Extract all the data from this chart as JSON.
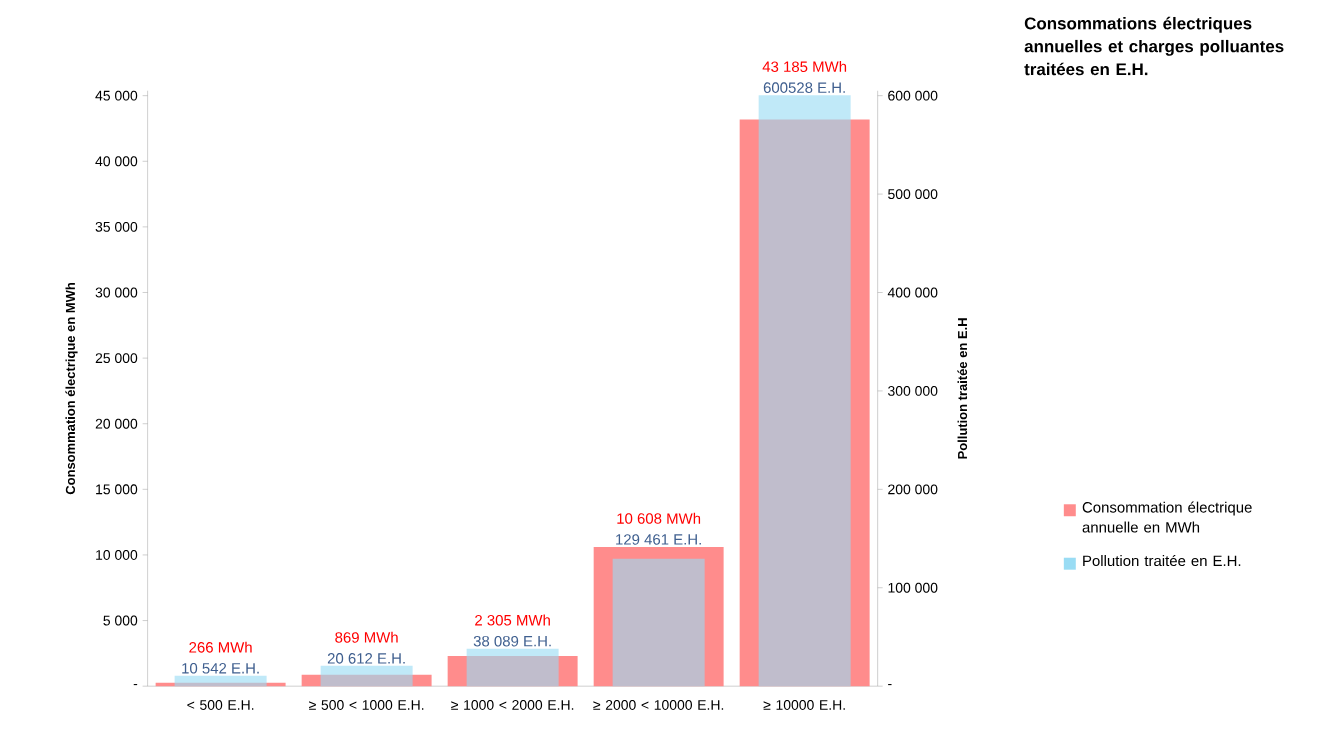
{
  "chart_data": {
    "type": "bar",
    "title": "Consommations électriques annuelles et charges polluantes traitées en E.H.",
    "ylabel": "Consommation électrique en MWh",
    "y2label": "Pollution traitée en E.H",
    "categories": [
      "< 500 E.H.",
      "≥ 500 < 1000 E.H.",
      "≥ 1000 < 2000 E.H.",
      "≥ 2000 < 10000 E.H.",
      "≥ 10000 E.H."
    ],
    "series": [
      {
        "name": "Consommation électrique annuelle en MWh",
        "color": "#ff8c8c",
        "values": [
          266,
          869,
          2305,
          10608,
          43185
        ],
        "value_labels": [
          "266 MWh",
          "869 MWh",
          "2 305 MWh",
          "10 608 MWh",
          "43 185 MWh"
        ]
      },
      {
        "name": "Pollution traitée en E.H.",
        "color": "#99dcf4",
        "axis": "y2",
        "values": [
          10542,
          20612,
          38089,
          129461,
          600528
        ],
        "value_labels": [
          "10 542 E.H.",
          "20 612 E.H.",
          "38 089 E.H.",
          "129 461 E.H.",
          "600528 E.H."
        ]
      }
    ],
    "ylim": [
      0,
      45375
    ],
    "yticks": [
      {
        "value": 0,
        "label": "-"
      },
      {
        "value": 5000,
        "label": "5 000"
      },
      {
        "value": 10000,
        "label": "10 000"
      },
      {
        "value": 15000,
        "label": "15 000"
      },
      {
        "value": 20000,
        "label": "20 000"
      },
      {
        "value": 25000,
        "label": "25 000"
      },
      {
        "value": 30000,
        "label": "30 000"
      },
      {
        "value": 35000,
        "label": "35 000"
      },
      {
        "value": 40000,
        "label": "40 000"
      },
      {
        "value": 45000,
        "label": "45 000"
      }
    ],
    "y2lim": [
      0,
      605000
    ],
    "y2ticks": [
      {
        "value": 0,
        "label": "-"
      },
      {
        "value": 100000,
        "label": "100 000"
      },
      {
        "value": 200000,
        "label": "200 000"
      },
      {
        "value": 300000,
        "label": "300 000"
      },
      {
        "value": 400000,
        "label": "400 000"
      },
      {
        "value": 500000,
        "label": "500 000"
      },
      {
        "value": 600000,
        "label": "600 000"
      }
    ],
    "legend": "right"
  }
}
